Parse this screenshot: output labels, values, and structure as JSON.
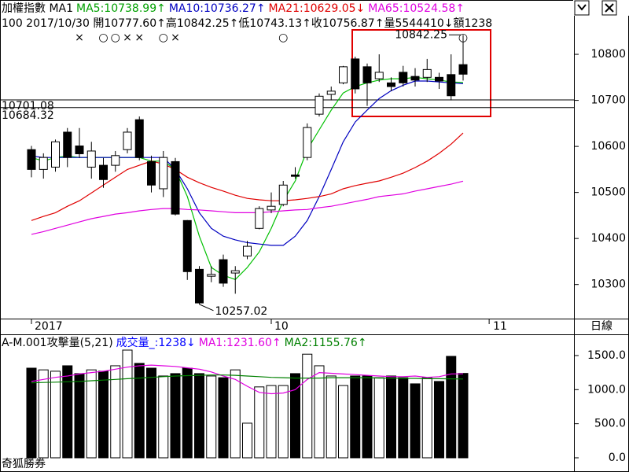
{
  "chart_data": [
    {
      "type": "candlestick",
      "title_items": [
        {
          "text": "加權指數 MA1",
          "color": "#000000"
        },
        {
          "text": "MA5:10738.99↑",
          "color": "#00a000"
        },
        {
          "text": "MA10:10736.27↑",
          "color": "#0000c0"
        },
        {
          "text": "MA21:10629.05↓",
          "color": "#e00000"
        },
        {
          "text": "MA65:10524.58↑",
          "color": "#e000e0"
        }
      ],
      "subtitle": "100 2017/10/30 開10777.60↑高10842.25↑低10743.13↑收10756.87↑量5544410↓額1238",
      "categories": [
        "2017",
        null,
        null,
        null,
        null,
        null,
        null,
        null,
        null,
        null,
        null,
        null,
        null,
        null,
        null,
        null,
        null,
        null,
        null,
        null,
        "10",
        null,
        null,
        null,
        null,
        null,
        null,
        null,
        null,
        null,
        null,
        null,
        null,
        null,
        null,
        null,
        null
      ],
      "next_label": "11",
      "period_label": "日線",
      "open": [
        10593,
        10550,
        10555,
        10631,
        10601,
        10555,
        10559,
        10559,
        10593,
        10658,
        10567,
        10508,
        10567,
        10439,
        10333,
        10318,
        10354,
        10325,
        10362,
        10422,
        10462,
        10474,
        10538,
        10576,
        10670,
        10713,
        10738,
        10790,
        10773,
        10747,
        10738,
        10761,
        10752,
        10750,
        10750,
        10756,
        10777.6
      ],
      "high": [
        10601,
        10585,
        10615,
        10640,
        10640,
        10610,
        10575,
        10590,
        10640,
        10665,
        10580,
        10590,
        10575,
        10440,
        10340,
        10340,
        10365,
        10340,
        10395,
        10470,
        10500,
        10525,
        10555,
        10650,
        10715,
        10730,
        10775,
        10795,
        10780,
        10800,
        10750,
        10775,
        10770,
        10790,
        10760,
        10800,
        10842.25
      ],
      "low": [
        10533,
        10530,
        10545,
        10555,
        10575,
        10530,
        10510,
        10545,
        10585,
        10570,
        10500,
        10490,
        10450,
        10310,
        10257.02,
        10305,
        10295,
        10280,
        10355,
        10420,
        10455,
        10470,
        10530,
        10570,
        10665,
        10700,
        10735,
        10715,
        10688,
        10740,
        10720,
        10730,
        10730,
        10740,
        10725,
        10700,
        10743.13
      ],
      "close": [
        10550,
        10576,
        10610,
        10576,
        10584,
        10590,
        10528,
        10580,
        10631,
        10576,
        10516,
        10576,
        10453,
        10328,
        10260,
        10322,
        10303,
        10330,
        10383,
        10465,
        10470,
        10516,
        10535,
        10641,
        10709,
        10720,
        10773,
        10725,
        10738,
        10761,
        10730,
        10738,
        10744,
        10767,
        10742,
        10710,
        10756.87
      ],
      "up_color": "#ffffff",
      "down_color": "#000000",
      "series": [
        {
          "color": "#00c000",
          "values": [
            10576,
            10568,
            10576,
            10579,
            10576,
            10576,
            10576,
            10576,
            10576,
            10576,
            10568,
            10568,
            10550,
            10491,
            10405,
            10337,
            10320,
            10311,
            10337,
            10371,
            10422,
            10482,
            10525,
            10593,
            10636,
            10679,
            10716,
            10730,
            10738,
            10744,
            10747,
            10747,
            10750,
            10747,
            10744,
            10740,
            10738.99
          ]
        },
        {
          "color": "#0000c0",
          "values": [
            10579,
            10576,
            10576,
            10576,
            10576,
            10576,
            10576,
            10576,
            10576,
            10576,
            10576,
            10576,
            10550,
            10508,
            10456,
            10422,
            10405,
            10397,
            10391,
            10388,
            10385,
            10385,
            10405,
            10439,
            10491,
            10550,
            10610,
            10653,
            10679,
            10704,
            10721,
            10733,
            10742,
            10742,
            10740,
            10738,
            10736.27
          ]
        },
        {
          "color": "#e00000",
          "values": [
            10439,
            10448,
            10456,
            10470,
            10482,
            10499,
            10516,
            10533,
            10550,
            10559,
            10568,
            10562,
            10550,
            10533,
            10521,
            10511,
            10503,
            10494,
            10487,
            10484,
            10482,
            10482,
            10484,
            10487,
            10491,
            10497,
            10508,
            10515,
            10520,
            10525,
            10533,
            10542,
            10554,
            10568,
            10585,
            10605,
            10629.05
          ]
        },
        {
          "color": "#e000e0",
          "values": [
            10409,
            10415,
            10422,
            10429,
            10436,
            10443,
            10448,
            10453,
            10456,
            10460,
            10463,
            10465,
            10465,
            10463,
            10462,
            10460,
            10458,
            10456,
            10456,
            10456,
            10458,
            10460,
            10462,
            10463,
            10467,
            10470,
            10475,
            10480,
            10485,
            10491,
            10494,
            10497,
            10503,
            10508,
            10513,
            10518,
            10524.58
          ]
        }
      ],
      "reference_lines": [
        10701.08,
        10684.32
      ],
      "signals": [
        null,
        null,
        null,
        null,
        "×",
        null,
        "○",
        "○",
        "×",
        "×",
        null,
        "○",
        "×",
        null,
        null,
        null,
        null,
        null,
        null,
        null,
        null,
        "○",
        null,
        null,
        null,
        null,
        null,
        null,
        null,
        null,
        null,
        null,
        null,
        null,
        null,
        null,
        "○"
      ],
      "signal_color": "#ff0000",
      "ylim": [
        10226,
        10918
      ],
      "yticks": [
        10300,
        10400,
        10500,
        10600,
        10700,
        10800
      ]
    },
    {
      "type": "bar",
      "title_items": [
        {
          "text": "A-M.001攻擊量(5,21)",
          "color": "#000000"
        },
        {
          "text": "成交量_:1238↓",
          "color": "#0000ff"
        },
        {
          "text": "MA1:1231.60↑",
          "color": "#e000e0"
        },
        {
          "text": "MA2:1155.76↑",
          "color": "#008000"
        }
      ],
      "values": [
        1315,
        1290,
        1270,
        1350,
        1235,
        1290,
        1270,
        1350,
        1580,
        1385,
        1315,
        1200,
        1235,
        1315,
        1235,
        1200,
        1175,
        1290,
        508,
        1040,
        1060,
        1060,
        1235,
        1520,
        1350,
        1200,
        1060,
        1200,
        1200,
        1175,
        1200,
        1175,
        1085,
        1175,
        1120,
        1488,
        1238
      ],
      "series": [
        {
          "color": "#e000e0",
          "values": [
            1120,
            1150,
            1180,
            1200,
            1230,
            1250,
            1270,
            1300,
            1330,
            1350,
            1360,
            1350,
            1340,
            1320,
            1300,
            1260,
            1200,
            1150,
            1050,
            960,
            940,
            950,
            1000,
            1150,
            1250,
            1240,
            1230,
            1220,
            1210,
            1200,
            1190,
            1190,
            1200,
            1180,
            1190,
            1230,
            1231.6
          ]
        },
        {
          "color": "#008000",
          "values": [
            1100,
            1105,
            1110,
            1115,
            1120,
            1130,
            1140,
            1150,
            1160,
            1170,
            1180,
            1190,
            1200,
            1205,
            1210,
            1215,
            1215,
            1210,
            1200,
            1190,
            1180,
            1175,
            1170,
            1170,
            1170,
            1175,
            1175,
            1175,
            1175,
            1170,
            1170,
            1165,
            1165,
            1160,
            1160,
            1158,
            1155.76
          ]
        }
      ],
      "ylim": [
        -208,
        1811
      ],
      "yticks": [
        {
          "value": 0,
          "label": "0.0"
        },
        {
          "value": 500,
          "label": "500.0"
        },
        {
          "value": 1000,
          "label": "1000.0"
        },
        {
          "value": 1500,
          "label": "1500.0"
        }
      ],
      "footer": "奇狐勝券"
    }
  ]
}
